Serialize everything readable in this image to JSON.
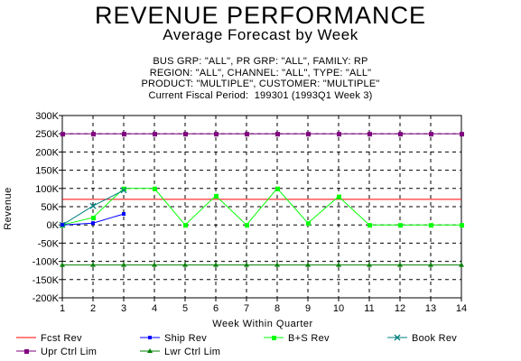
{
  "header": {
    "title": "REVENUE PERFORMANCE",
    "subtitle": "Average Forecast by Week",
    "filters": [
      "BUS GRP: \"ALL\", PR GRP: \"ALL\", FAMILY: RP",
      "REGION: \"ALL\", CHANNEL: \"ALL\", TYPE: \"ALL\"",
      "PRODUCT: \"MULTIPLE\", CUSTOMER: \"MULTIPLE\"",
      "Current Fiscal Period:  199301 (1993Q1 Week 3)"
    ]
  },
  "chart_data": {
    "type": "line",
    "xlabel": "Week Within Quarter",
    "ylabel": "Revenue",
    "xlim": [
      1,
      14
    ],
    "ylim": [
      -200000,
      300000
    ],
    "grid": true,
    "x_ticks": [
      "1",
      "2",
      "3",
      "4",
      "5",
      "6",
      "7",
      "8",
      "9",
      "10",
      "11",
      "12",
      "13",
      "14"
    ],
    "y_ticks": [
      {
        "value": 300000,
        "label": "300K"
      },
      {
        "value": 250000,
        "label": "250K"
      },
      {
        "value": 200000,
        "label": "200K"
      },
      {
        "value": 150000,
        "label": "150K"
      },
      {
        "value": 100000,
        "label": "100K"
      },
      {
        "value": 50000,
        "label": "50K"
      },
      {
        "value": 0,
        "label": "0K"
      },
      {
        "value": -50000,
        "label": "-50K"
      },
      {
        "value": -100000,
        "label": "-100K"
      },
      {
        "value": -150000,
        "label": "-150K"
      },
      {
        "value": -200000,
        "label": "-200K"
      }
    ],
    "legend_placement": "bottom",
    "series": [
      {
        "name": "Fcst Rev",
        "color": "#ff0000",
        "marker": "none",
        "x": [
          1,
          14
        ],
        "values": [
          70000,
          70000
        ]
      },
      {
        "name": "Ship Rev",
        "color": "#0000ff",
        "marker": "dot",
        "x": [
          1,
          2,
          3
        ],
        "values": [
          0,
          5000,
          30000
        ]
      },
      {
        "name": "B+S Rev",
        "color": "#00ff00",
        "marker": "square",
        "x": [
          1,
          2,
          3,
          4,
          5,
          6,
          7,
          8,
          9,
          10,
          11,
          12,
          13,
          14
        ],
        "values": [
          0,
          20000,
          100000,
          100000,
          0,
          80000,
          0,
          100000,
          5000,
          78000,
          0,
          0,
          0,
          0
        ]
      },
      {
        "name": "Book Rev",
        "color": "#008080",
        "marker": "x",
        "x": [
          1,
          2,
          3
        ],
        "values": [
          0,
          52000,
          95000
        ]
      },
      {
        "name": "Upr Ctrl Lim",
        "color": "#800080",
        "marker": "square",
        "x": [
          1,
          2,
          3,
          4,
          5,
          6,
          7,
          8,
          9,
          10,
          11,
          12,
          13,
          14
        ],
        "values": [
          250000,
          250000,
          250000,
          250000,
          250000,
          250000,
          250000,
          250000,
          250000,
          250000,
          250000,
          250000,
          250000,
          250000
        ]
      },
      {
        "name": "Lwr Ctrl Lim",
        "color": "#008000",
        "marker": "triangle",
        "x": [
          1,
          2,
          3,
          4,
          5,
          6,
          7,
          8,
          9,
          10,
          11,
          12,
          13,
          14
        ],
        "values": [
          -110000,
          -110000,
          -110000,
          -110000,
          -110000,
          -110000,
          -110000,
          -110000,
          -110000,
          -110000,
          -110000,
          -110000,
          -110000,
          -110000
        ]
      }
    ]
  }
}
